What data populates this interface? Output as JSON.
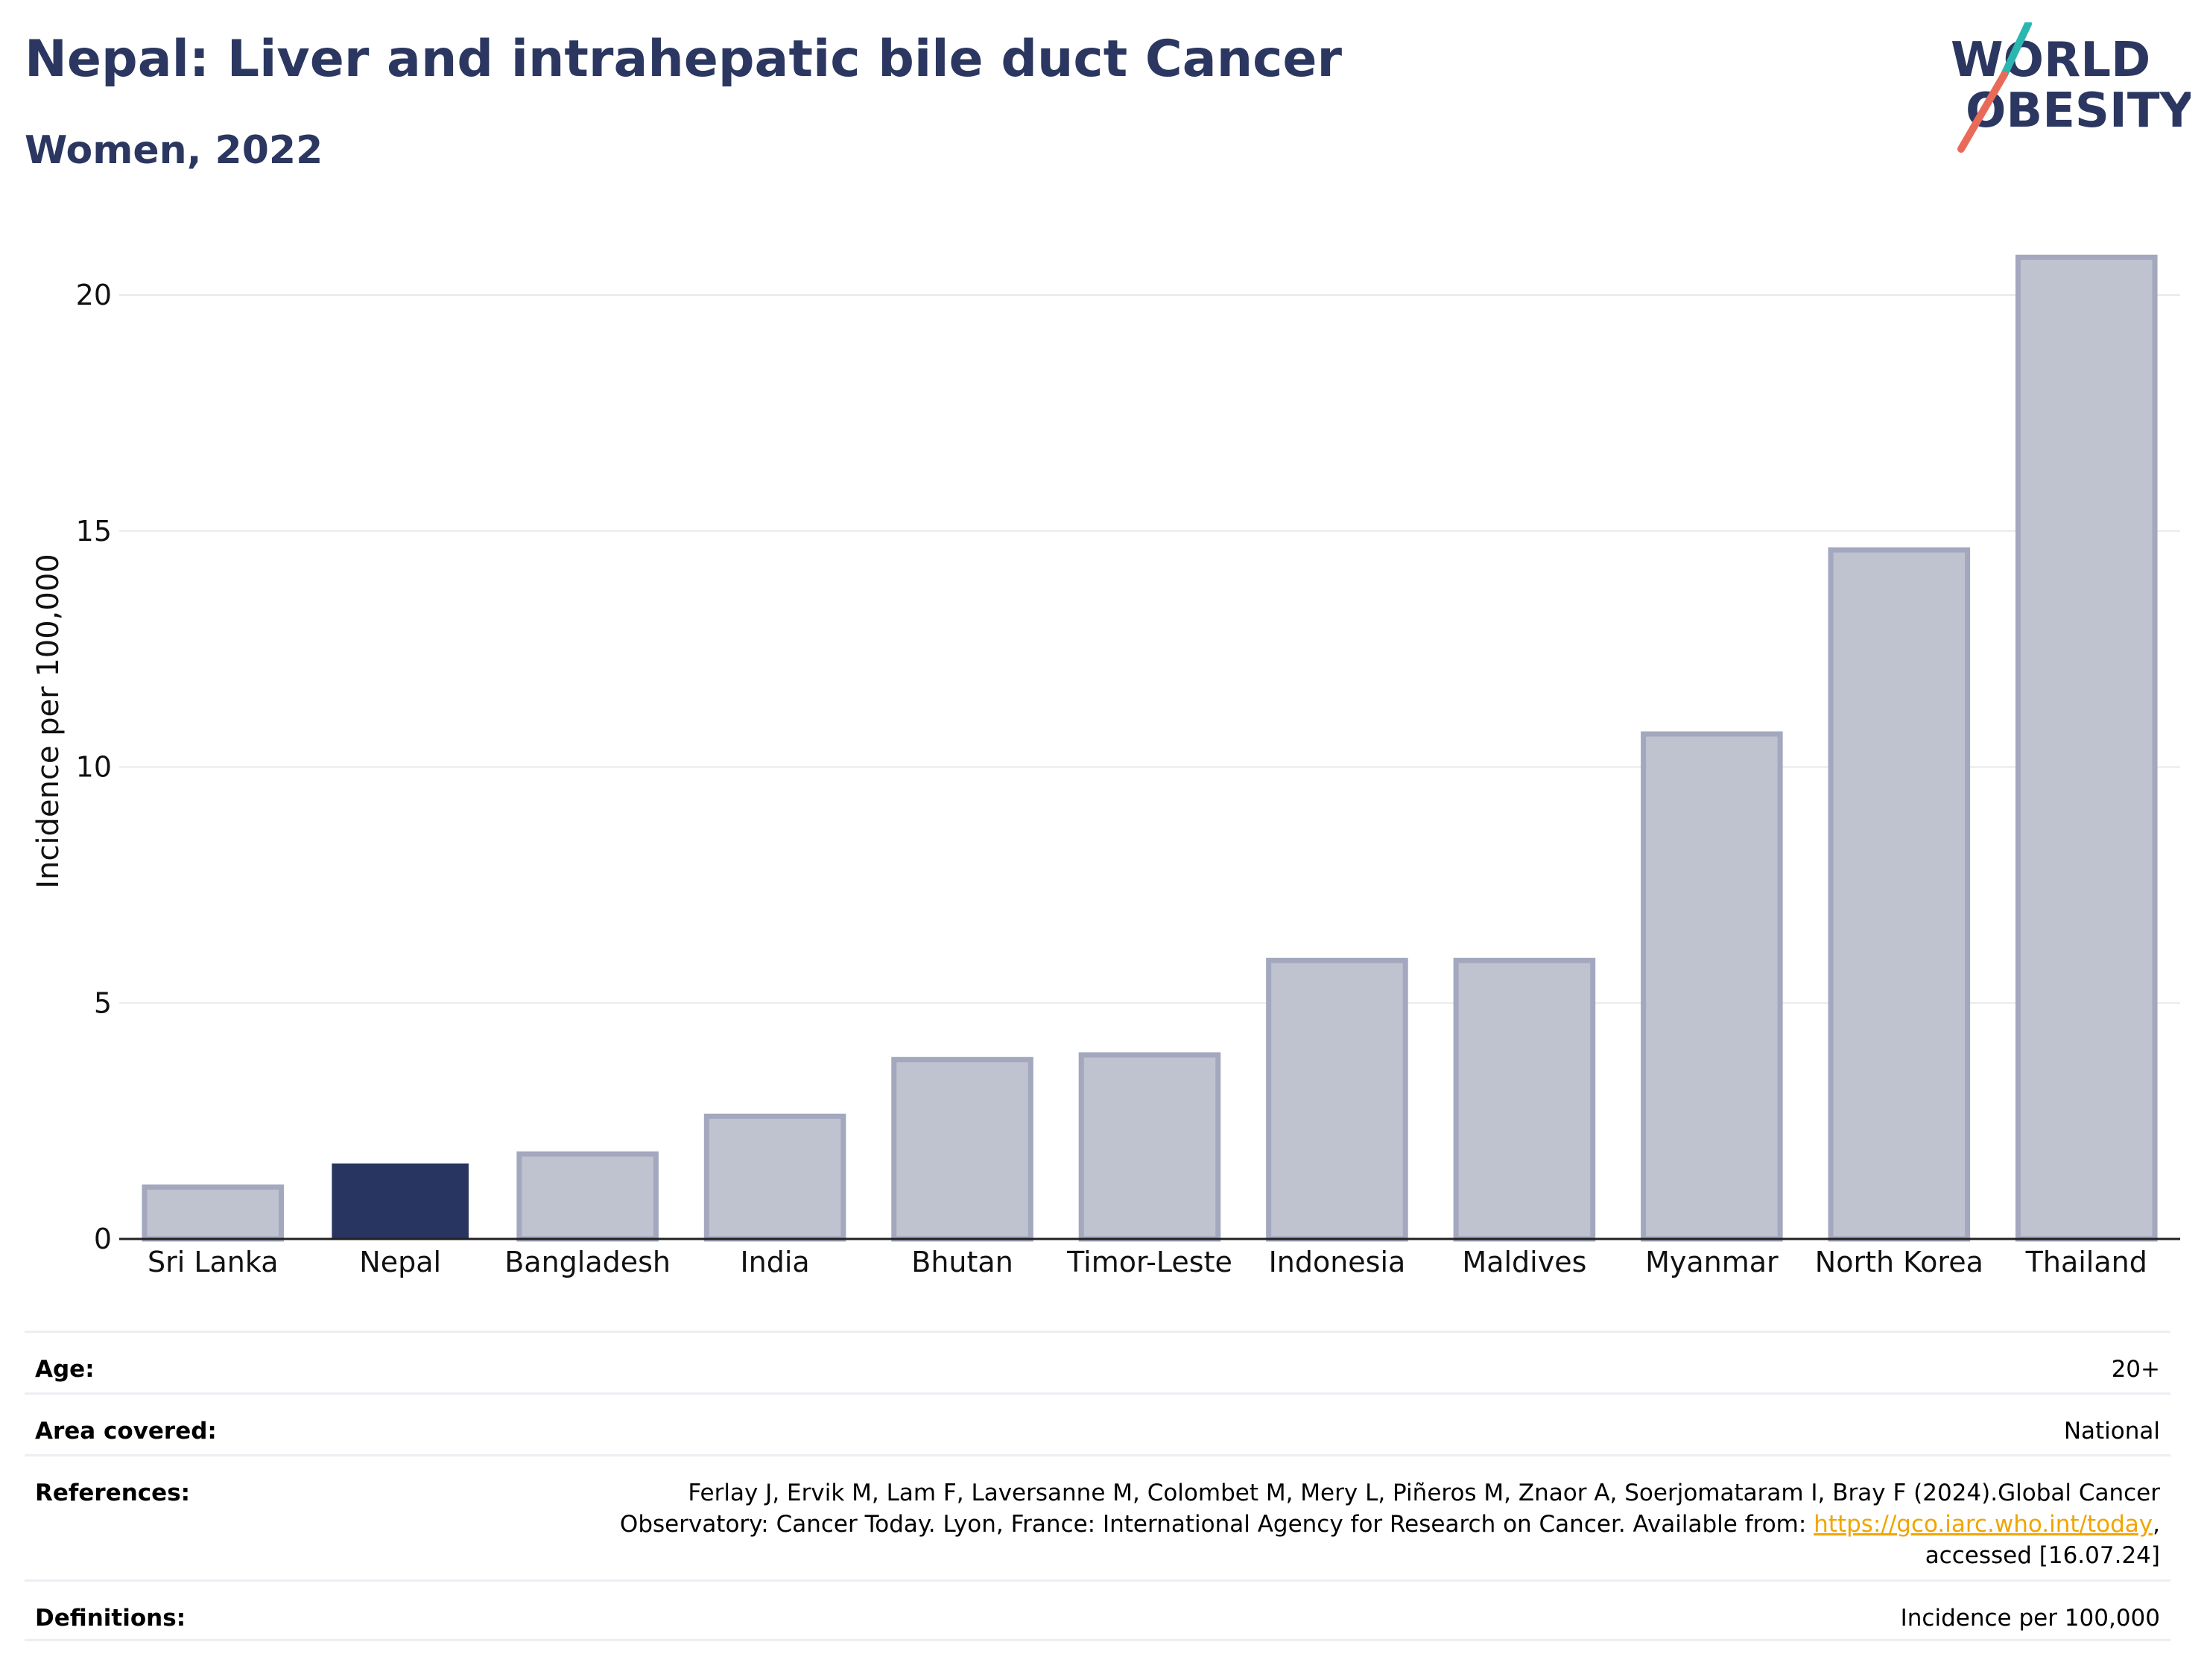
{
  "header": {
    "title": "Nepal: Liver and intrahepatic bile duct Cancer",
    "subtitle": "Women, 2022"
  },
  "logo": {
    "line1": "WORLD",
    "line2": "OBESITY",
    "accent_teal": "#2ab7b0",
    "accent_coral": "#ea6a5a",
    "text_color": "#2b3760"
  },
  "chart_data": {
    "type": "bar",
    "title": "Nepal: Liver and intrahepatic bile duct Cancer",
    "subtitle": "Women, 2022",
    "ylabel": "Incidence per 100,000",
    "xlabel": "",
    "ylim": [
      0,
      22
    ],
    "yticks": [
      0,
      5,
      10,
      15,
      20
    ],
    "grid": true,
    "categories": [
      "Sri Lanka",
      "Nepal",
      "Bangladesh",
      "India",
      "Bhutan",
      "Timor-Leste",
      "Indonesia",
      "Maldives",
      "Myanmar",
      "North Korea",
      "Thailand"
    ],
    "values": [
      1.1,
      1.6,
      1.8,
      2.6,
      3.8,
      3.9,
      5.9,
      5.9,
      10.7,
      14.6,
      20.8
    ],
    "highlight": "Nepal",
    "highlight_color": "#283560",
    "bar_color": "#bfc2cf",
    "bar_edge_color": "#a3a8be"
  },
  "meta": {
    "age_label": "Age:",
    "age_value": "20+",
    "area_label": "Area covered:",
    "area_value": "National",
    "references_label": "References:",
    "references_text1": "Ferlay J, Ervik M, Lam F, Laversanne M, Colombet M, Mery L, Piñeros M, Znaor A, Soerjomataram I, Bray F (2024).Global Cancer",
    "references_text2": "Observatory: Cancer Today. Lyon, France: International Agency for Research on Cancer. Available from: ",
    "references_link": "https://gco.iarc.who.int/today",
    "references_text3": ",",
    "references_text4": "accessed [16.07.24]",
    "definitions_label": "Definitions:",
    "definitions_value": "Incidence per 100,000"
  }
}
